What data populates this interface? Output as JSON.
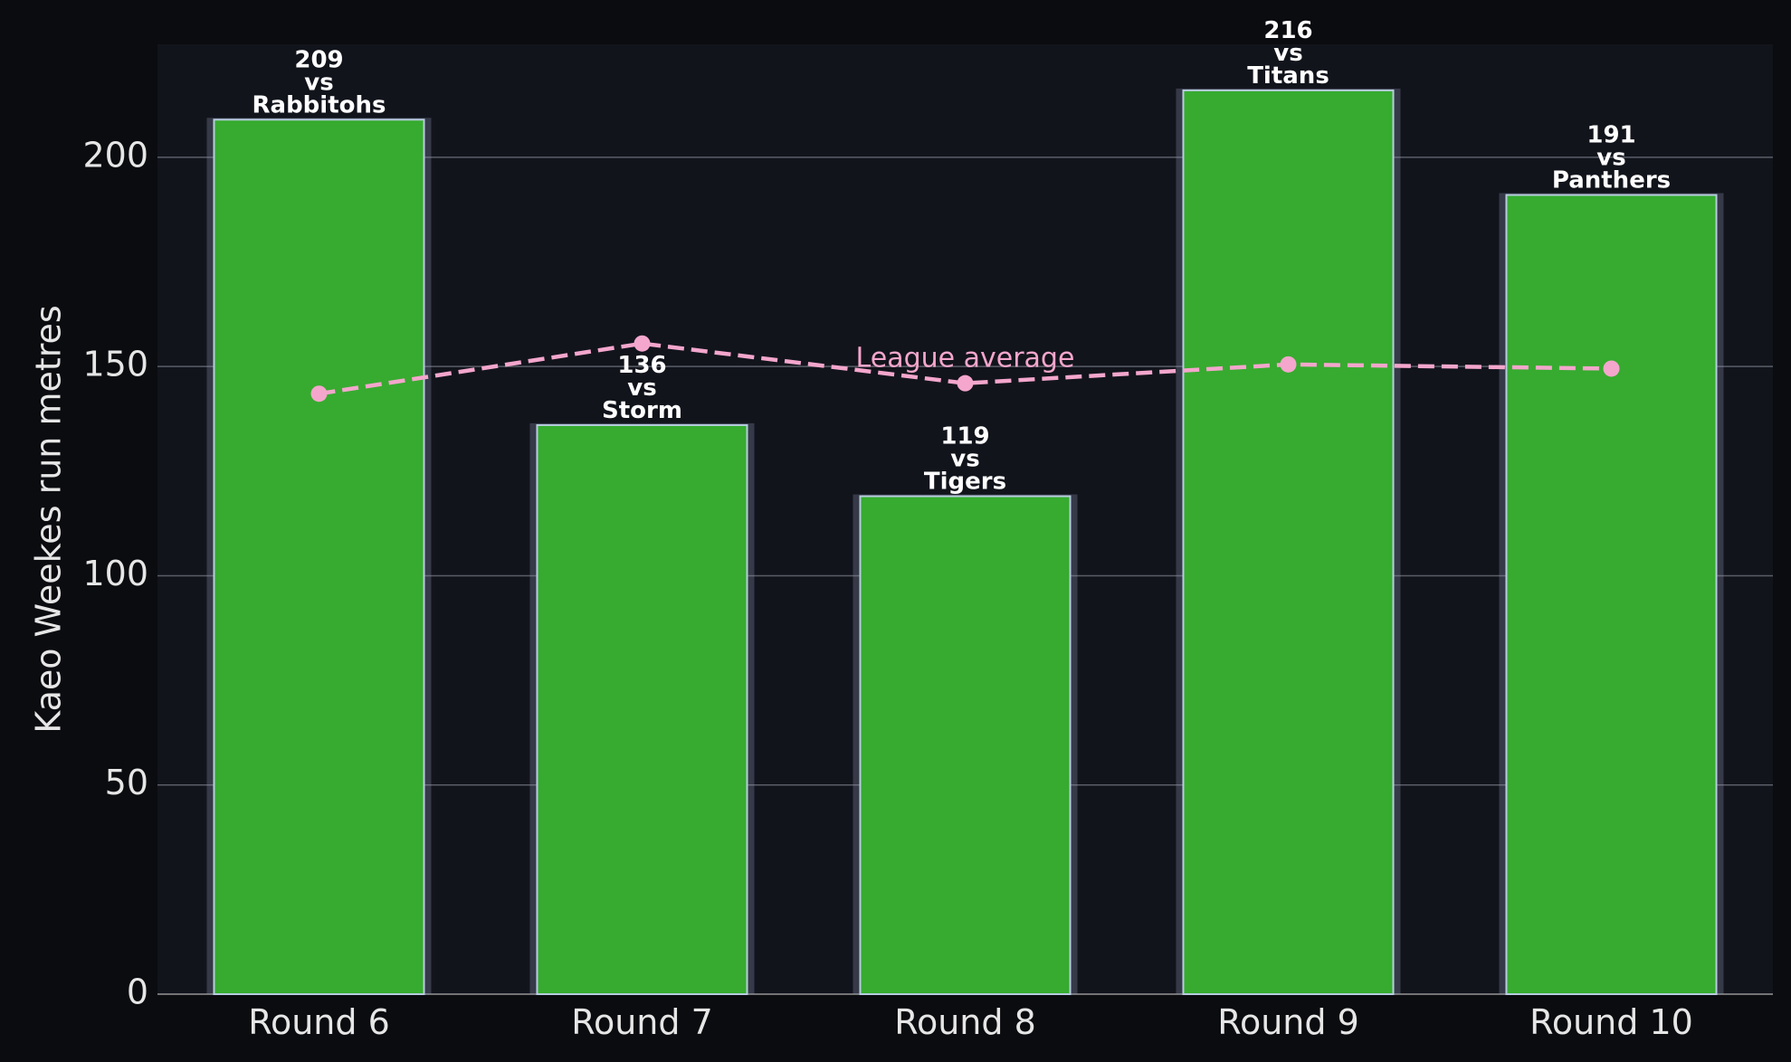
{
  "chart_data": {
    "type": "bar",
    "y_label": "Kaeo Weekes run metres",
    "categories": [
      "Round 6",
      "Round 7",
      "Round 8",
      "Round 9",
      "Round 10"
    ],
    "series": [
      {
        "name": "Kaeo Weekes",
        "type": "bar",
        "color": "#36ab2f",
        "values": [
          209,
          136,
          119,
          216,
          191
        ]
      },
      {
        "name": "League average",
        "type": "line",
        "color": "#f4a6cc",
        "values": [
          143.5,
          155.5,
          146,
          150.5,
          149.5
        ]
      }
    ],
    "connector": "vs",
    "opponents": [
      "Rabbitohs",
      "Storm",
      "Tigers",
      "Titans",
      "Panthers"
    ],
    "ylim": [
      0,
      227
    ],
    "yticks": [
      0,
      50,
      100,
      150,
      200
    ],
    "grid": true
  }
}
